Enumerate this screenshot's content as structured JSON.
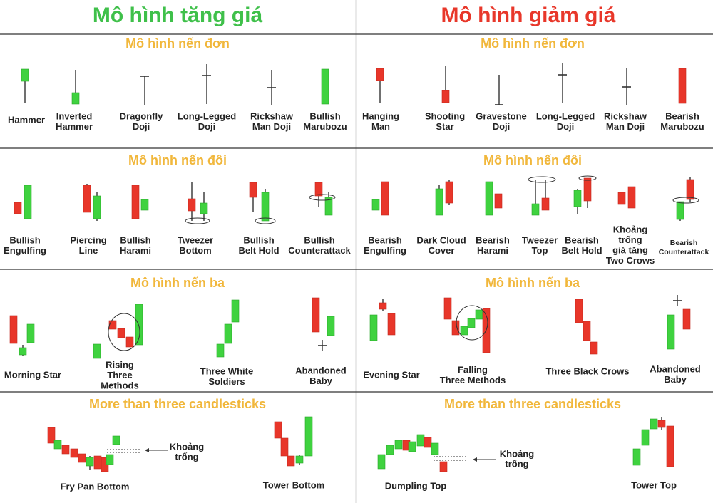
{
  "header": {
    "left_title": "Mô hình tăng giá",
    "right_title": "Mô hình giảm giá"
  },
  "sections": [
    {
      "left": {
        "title": "Mô hình nến đơn",
        "patterns": [
          {
            "label": [
              "Hammer"
            ]
          },
          {
            "label": [
              "Inverted",
              "Hammer"
            ]
          },
          {
            "label": [
              "Dragonfly",
              "Doji"
            ]
          },
          {
            "label": [
              "Long-Legged",
              "Doji"
            ]
          },
          {
            "label": [
              "Rickshaw",
              "Man Doji"
            ]
          },
          {
            "label": [
              "Bullish",
              "Marubozu"
            ]
          }
        ]
      },
      "right": {
        "title": "Mô hình nến đơn",
        "patterns": [
          {
            "label": [
              "Hanging",
              "Man"
            ]
          },
          {
            "label": [
              "Shooting",
              "Star"
            ]
          },
          {
            "label": [
              "Gravestone",
              "Doji"
            ]
          },
          {
            "label": [
              "Long-Legged",
              "Doji"
            ]
          },
          {
            "label": [
              "Rickshaw",
              "Man Doji"
            ]
          },
          {
            "label": [
              "Bearish",
              "Marubozu"
            ]
          }
        ]
      }
    },
    {
      "left": {
        "title": "Mô hình nến đôi",
        "patterns": [
          {
            "label": [
              "Bullish",
              "Engulfing"
            ]
          },
          {
            "label": [
              "Piercing",
              "Line"
            ]
          },
          {
            "label": [
              "Bullish",
              "Harami"
            ]
          },
          {
            "label": [
              "Tweezer",
              "Bottom"
            ]
          },
          {
            "label": [
              "Bullish",
              "Belt Hold"
            ]
          },
          {
            "label": [
              "Bullish",
              "Counterattack"
            ]
          }
        ]
      },
      "right": {
        "title": "Mô hình nến đôi",
        "patterns": [
          {
            "label": [
              "Bearish",
              "Engulfing"
            ]
          },
          {
            "label": [
              "Dark Cloud",
              "Cover"
            ]
          },
          {
            "label": [
              "Bearish",
              "Harami"
            ]
          },
          {
            "label": [
              "Tweezer",
              "Top"
            ]
          },
          {
            "label": [
              "Bearish",
              "Belt Hold"
            ]
          },
          {
            "label": [
              "Khoảng",
              "trống",
              "giá tăng",
              "Two Crows"
            ]
          },
          {
            "label": [
              "Bearish",
              "Counterattack"
            ]
          }
        ]
      }
    },
    {
      "left": {
        "title": "Mô hình nến ba",
        "patterns": [
          {
            "label": [
              "Morning Star"
            ]
          },
          {
            "label": [
              "Rising",
              "Three",
              "Methods"
            ]
          },
          {
            "label": [
              "Three White",
              "Soldiers"
            ]
          },
          {
            "label": [
              "Abandoned",
              "Baby"
            ]
          }
        ]
      },
      "right": {
        "title": "Mô hình nến ba",
        "patterns": [
          {
            "label": [
              "Evening Star"
            ]
          },
          {
            "label": [
              "Falling",
              "Three Methods"
            ]
          },
          {
            "label": [
              "Three Black Crows"
            ]
          },
          {
            "label": [
              "Abandoned",
              "Baby"
            ]
          }
        ]
      }
    },
    {
      "left": {
        "title": "More than three candlesticks",
        "patterns": [
          {
            "label": [
              "Fry Pan Bottom"
            ]
          },
          {
            "label": [
              "Tower Bottom"
            ]
          }
        ],
        "note": [
          "Khoảng",
          "trống"
        ]
      },
      "right": {
        "title": "More than three candlesticks",
        "patterns": [
          {
            "label": [
              "Dumpling Top"
            ]
          },
          {
            "label": [
              "Tower Top"
            ]
          }
        ],
        "note": [
          "Khoảng",
          "trống"
        ]
      }
    }
  ]
}
